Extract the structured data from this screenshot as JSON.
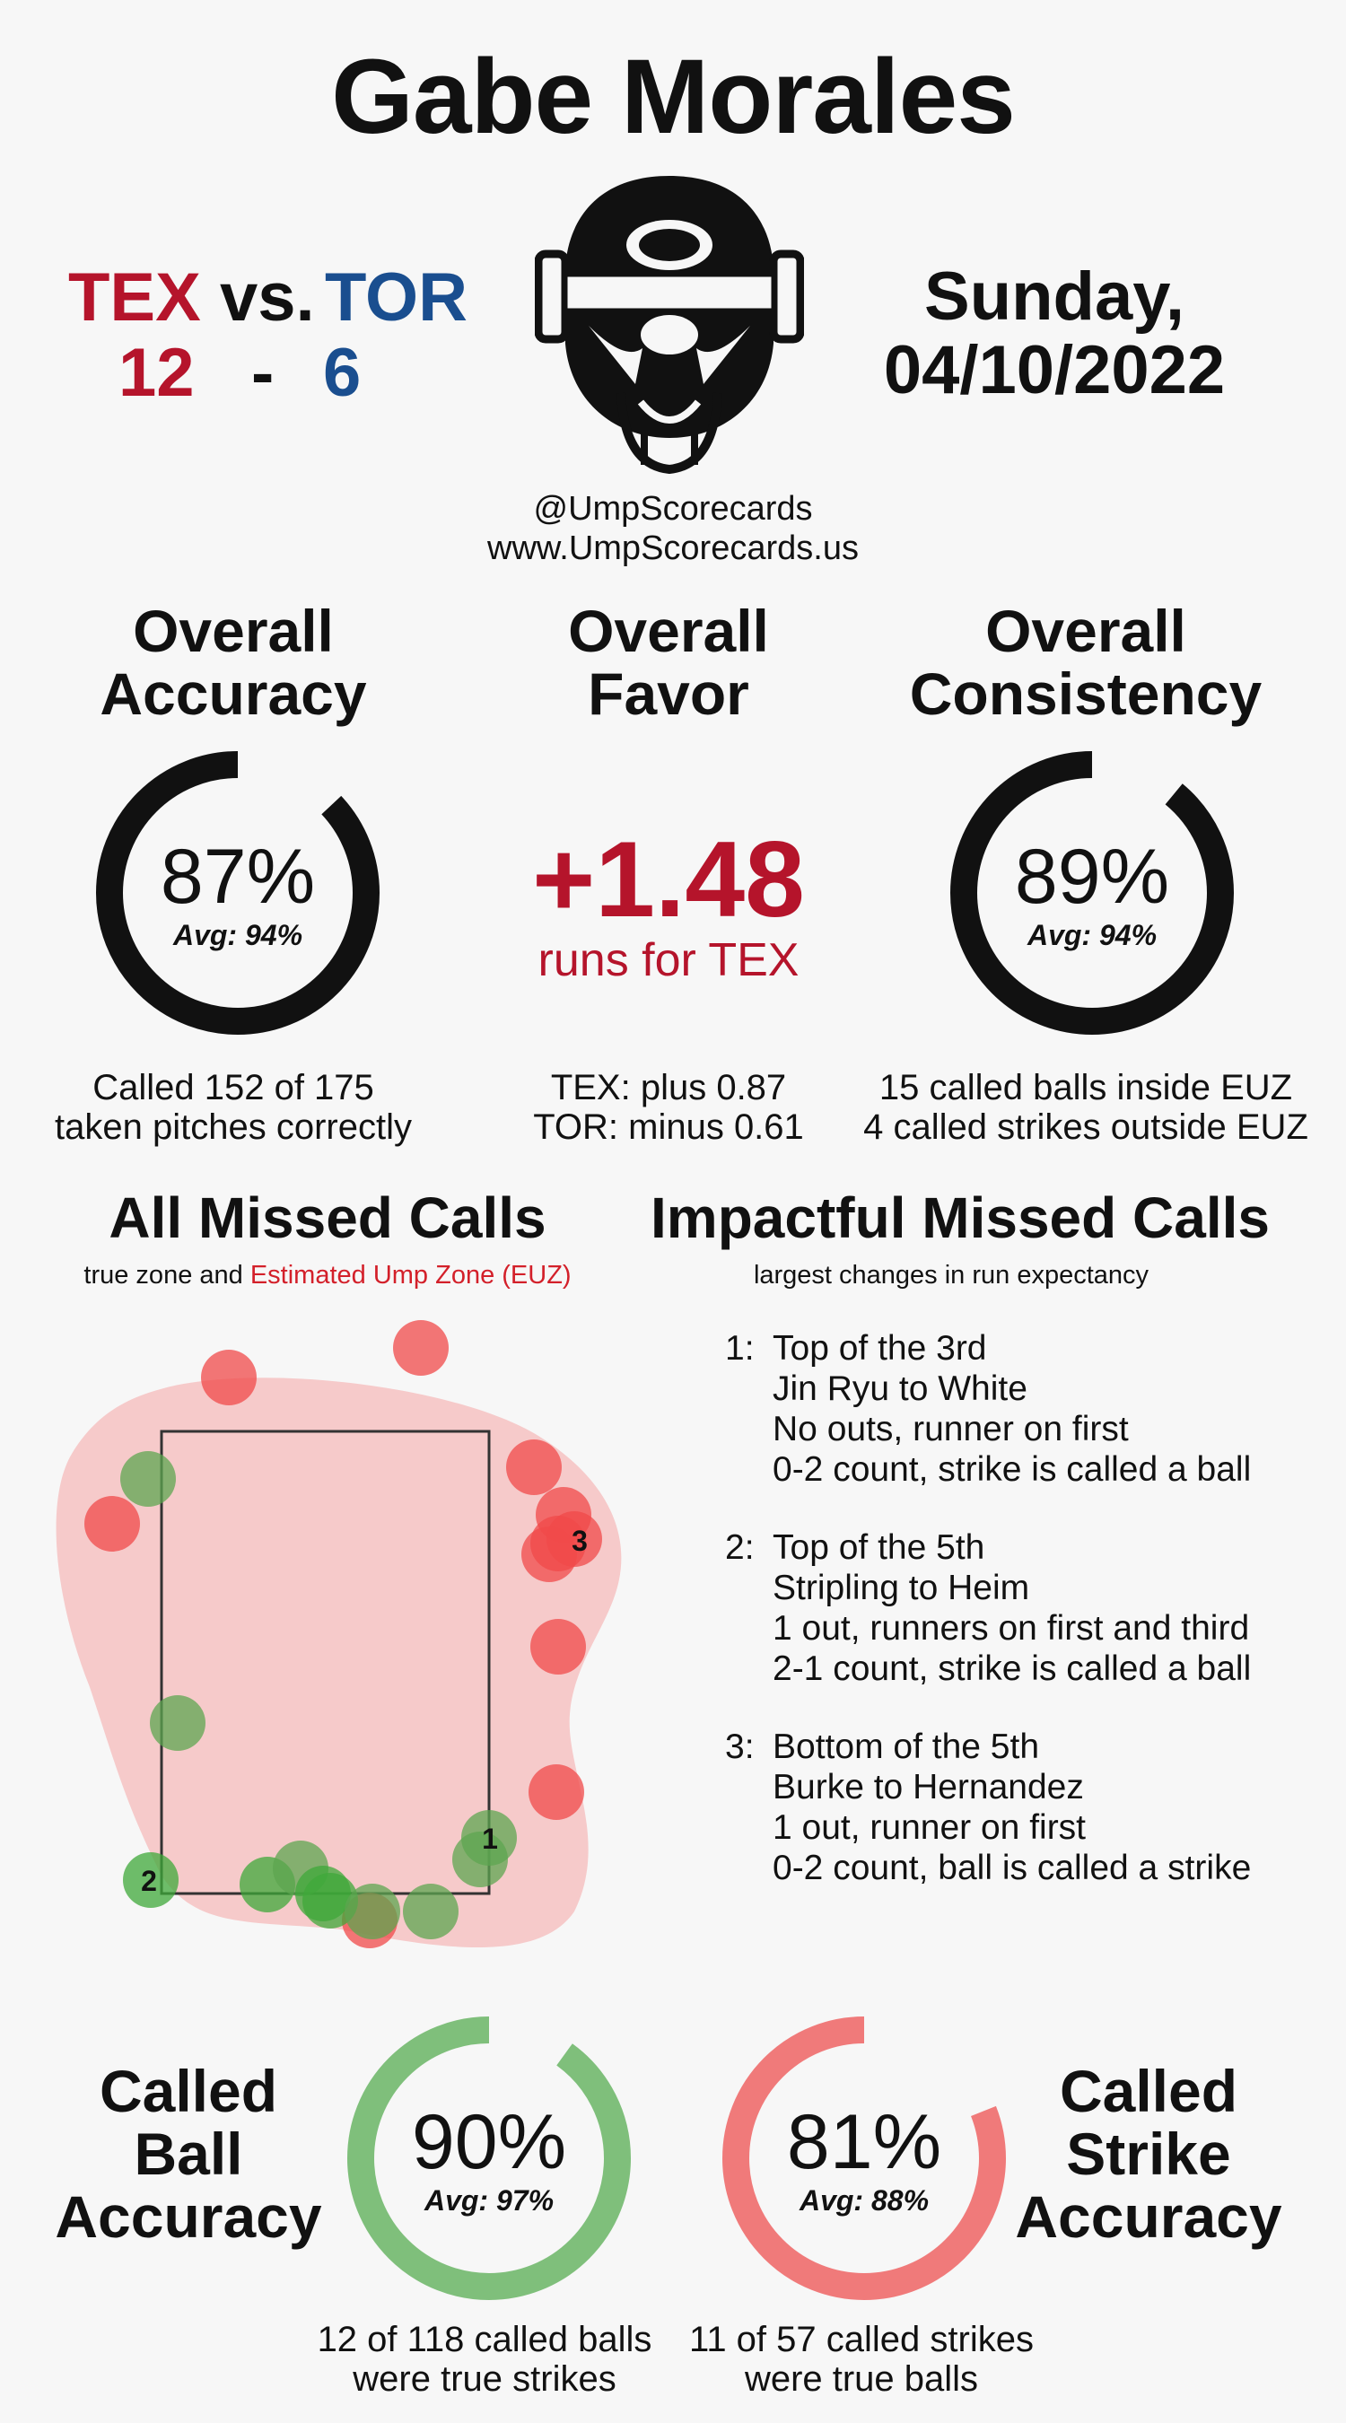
{
  "umpire_name": "Gabe Morales",
  "matchup": {
    "away_team": "TEX",
    "vs_label": "vs.",
    "home_team": "TOR",
    "away_score": "12",
    "dash": "-",
    "home_score": "6"
  },
  "date": {
    "line1": "Sunday,",
    "line2": "04/10/2022"
  },
  "social": {
    "handle": "@UmpScorecards",
    "website": "www.UmpScorecards.us"
  },
  "colors": {
    "tex": "#b5142b",
    "tor": "#1a4e8f",
    "ball_green": "#7fbf7b",
    "strike_red": "#f07a7a",
    "euz_fill": "#f6caca"
  },
  "icons": {
    "logo": "umpire-mask-icon"
  },
  "accuracy": {
    "title_line1": "Overall",
    "title_line2": "Accuracy",
    "value": "87%",
    "avg": "Avg: 94%",
    "fraction": 0.87,
    "desc_line1": "Called 152 of 175",
    "desc_line2": "taken pitches correctly"
  },
  "favor": {
    "title_line1": "Overall",
    "title_line2": "Favor",
    "value": "+1.48",
    "unit": "runs for TEX",
    "desc_line1": "TEX: plus 0.87",
    "desc_line2": "TOR: minus 0.61"
  },
  "consistency": {
    "title_line1": "Overall",
    "title_line2": "Consistency",
    "value": "89%",
    "avg": "Avg: 94%",
    "fraction": 0.89,
    "desc_line1": "15 called balls inside EUZ",
    "desc_line2": "4 called strikes outside EUZ"
  },
  "missed_calls": {
    "title": "All Missed Calls",
    "subtitle_prefix": "true zone and",
    "subtitle_euz": "Estimated Ump Zone (EUZ)",
    "markers": [
      {
        "label": "1"
      },
      {
        "label": "2"
      },
      {
        "label": "3"
      }
    ]
  },
  "impactful": {
    "title": "Impactful Missed Calls",
    "subtitle": "largest changes in run expectancy",
    "items": [
      {
        "num": "1:",
        "inning": "Top of the 3rd",
        "matchup": "Jin Ryu to White",
        "situation": "No outs, runner on first",
        "count": "0-2 count, strike is called a ball"
      },
      {
        "num": "2:",
        "inning": "Top of the 5th",
        "matchup": "Stripling to Heim",
        "situation": "1 out, runners on first and third",
        "count": "2-1 count, strike is called a ball"
      },
      {
        "num": "3:",
        "inning": "Bottom of the 5th",
        "matchup": "Burke to Hernandez",
        "situation": "1 out, runner on first",
        "count": "0-2 count, ball is called a strike"
      }
    ]
  },
  "ball_accuracy": {
    "title_line1": "Called",
    "title_line2": "Ball",
    "title_line3": "Accuracy",
    "value": "90%",
    "avg": "Avg: 97%",
    "fraction": 0.9,
    "desc_line1": "12 of 118 called balls",
    "desc_line2": "were true strikes"
  },
  "strike_accuracy": {
    "title_line1": "Called",
    "title_line2": "Strike",
    "title_line3": "Accuracy",
    "value": "81%",
    "avg": "Avg: 88%",
    "fraction": 0.81,
    "desc_line1": "11 of 57 called strikes",
    "desc_line2": "were true balls"
  }
}
